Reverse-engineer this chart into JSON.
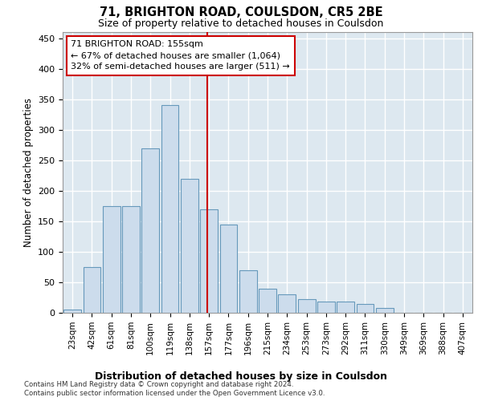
{
  "title": "71, BRIGHTON ROAD, COULSDON, CR5 2BE",
  "subtitle": "Size of property relative to detached houses in Coulsdon",
  "xlabel": "Distribution of detached houses by size in Coulsdon",
  "ylabel": "Number of detached properties",
  "bar_color": "#ccdcec",
  "bar_edge_color": "#6699bb",
  "background_color": "#dde8f0",
  "grid_color": "#ffffff",
  "categories": [
    "23sqm",
    "42sqm",
    "61sqm",
    "81sqm",
    "100sqm",
    "119sqm",
    "138sqm",
    "157sqm",
    "177sqm",
    "196sqm",
    "215sqm",
    "234sqm",
    "253sqm",
    "273sqm",
    "292sqm",
    "311sqm",
    "330sqm",
    "349sqm",
    "369sqm",
    "388sqm",
    "407sqm"
  ],
  "values": [
    5,
    75,
    175,
    175,
    270,
    340,
    220,
    170,
    145,
    70,
    40,
    30,
    22,
    18,
    18,
    15,
    8,
    0,
    0,
    0,
    0
  ],
  "vline_color": "#cc0000",
  "vline_x_pos": 6.9,
  "annotation_text": "71 BRIGHTON ROAD: 155sqm\n← 67% of detached houses are smaller (1,064)\n32% of semi-detached houses are larger (511) →",
  "annotation_box_color": "#ffffff",
  "annotation_box_edge": "#cc0000",
  "footnote1": "Contains HM Land Registry data © Crown copyright and database right 2024.",
  "footnote2": "Contains public sector information licensed under the Open Government Licence v3.0.",
  "ylim": [
    0,
    460
  ],
  "yticks": [
    0,
    50,
    100,
    150,
    200,
    250,
    300,
    350,
    400,
    450
  ],
  "fig_bg": "#ffffff"
}
